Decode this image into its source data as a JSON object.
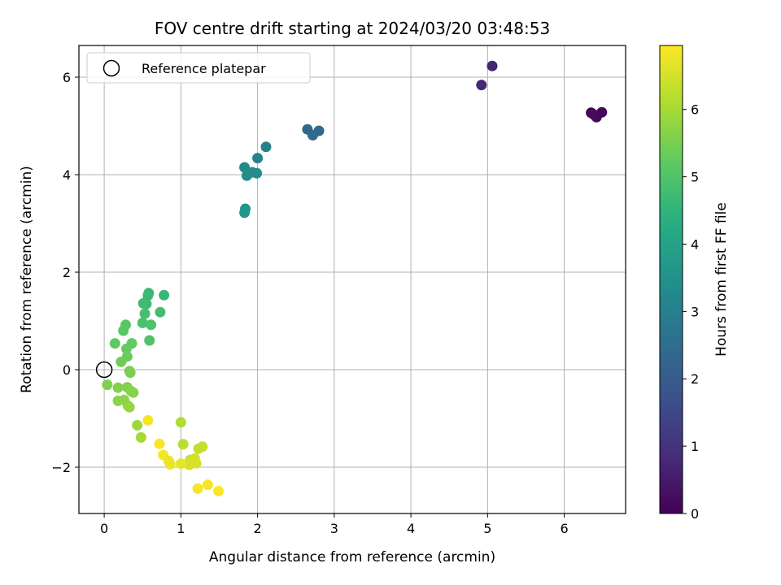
{
  "chart_data": {
    "type": "scatter",
    "title": "FOV centre drift starting at 2024/03/20 03:48:53",
    "xlabel": "Angular distance from reference (arcmin)",
    "ylabel": "Rotation from reference (arcmin)",
    "xlim": [
      -0.33,
      6.8
    ],
    "ylim": [
      -2.95,
      6.65
    ],
    "xticks": [
      0,
      1,
      2,
      3,
      4,
      5,
      6
    ],
    "yticks": [
      -2,
      0,
      2,
      4,
      6
    ],
    "xtick_labels": [
      "0",
      "1",
      "2",
      "3",
      "4",
      "5",
      "6"
    ],
    "ytick_labels": [
      "−2",
      "0",
      "2",
      "4",
      "6"
    ],
    "grid": true,
    "legend": {
      "label": "Reference platepar",
      "placement": "top-left",
      "marker": "open-circle"
    },
    "reference_point": {
      "x": 0,
      "y": 0
    },
    "colorbar": {
      "label": "Hours from first FF file",
      "range": [
        0,
        6.95
      ],
      "ticks": [
        0,
        1,
        2,
        3,
        4,
        5,
        6
      ],
      "tick_labels": [
        "0",
        "1",
        "2",
        "3",
        "4",
        "5",
        "6"
      ],
      "colormap": "viridis"
    },
    "points": [
      {
        "x": 6.35,
        "y": 5.27,
        "c": 0.05
      },
      {
        "x": 6.49,
        "y": 5.28,
        "c": 0.1
      },
      {
        "x": 6.42,
        "y": 5.18,
        "c": 0.15
      },
      {
        "x": 6.38,
        "y": 5.24,
        "c": 0.2
      },
      {
        "x": 5.06,
        "y": 6.23,
        "c": 0.7
      },
      {
        "x": 4.92,
        "y": 5.84,
        "c": 0.75
      },
      {
        "x": 2.65,
        "y": 4.93,
        "c": 2.3
      },
      {
        "x": 2.8,
        "y": 4.9,
        "c": 2.35
      },
      {
        "x": 2.72,
        "y": 4.81,
        "c": 2.4
      },
      {
        "x": 2.11,
        "y": 4.57,
        "c": 3.0
      },
      {
        "x": 2.0,
        "y": 4.34,
        "c": 3.05
      },
      {
        "x": 1.83,
        "y": 4.15,
        "c": 3.25
      },
      {
        "x": 1.93,
        "y": 4.05,
        "c": 3.3
      },
      {
        "x": 1.99,
        "y": 4.03,
        "c": 3.35
      },
      {
        "x": 1.86,
        "y": 3.98,
        "c": 3.4
      },
      {
        "x": 1.84,
        "y": 3.3,
        "c": 3.6
      },
      {
        "x": 1.83,
        "y": 3.22,
        "c": 3.65
      },
      {
        "x": 0.58,
        "y": 1.57,
        "c": 4.6
      },
      {
        "x": 0.57,
        "y": 1.52,
        "c": 4.65
      },
      {
        "x": 0.78,
        "y": 1.53,
        "c": 4.6
      },
      {
        "x": 0.55,
        "y": 1.35,
        "c": 4.7
      },
      {
        "x": 0.51,
        "y": 1.36,
        "c": 4.75
      },
      {
        "x": 0.73,
        "y": 1.18,
        "c": 4.8
      },
      {
        "x": 0.53,
        "y": 1.15,
        "c": 4.85
      },
      {
        "x": 0.5,
        "y": 0.96,
        "c": 4.9
      },
      {
        "x": 0.61,
        "y": 0.92,
        "c": 4.95
      },
      {
        "x": 0.59,
        "y": 0.6,
        "c": 5.0
      },
      {
        "x": 0.28,
        "y": 0.92,
        "c": 5.1
      },
      {
        "x": 0.25,
        "y": 0.8,
        "c": 5.15
      },
      {
        "x": 0.14,
        "y": 0.54,
        "c": 5.2
      },
      {
        "x": 0.36,
        "y": 0.54,
        "c": 5.25
      },
      {
        "x": 0.29,
        "y": 0.43,
        "c": 5.3
      },
      {
        "x": 0.3,
        "y": 0.27,
        "c": 5.35
      },
      {
        "x": 0.22,
        "y": 0.16,
        "c": 5.4
      },
      {
        "x": 0.33,
        "y": -0.03,
        "c": 5.45
      },
      {
        "x": 0.34,
        "y": -0.06,
        "c": 5.5
      },
      {
        "x": 0.04,
        "y": -0.31,
        "c": 5.55
      },
      {
        "x": 0.18,
        "y": -0.37,
        "c": 5.6
      },
      {
        "x": 0.3,
        "y": -0.36,
        "c": 5.6
      },
      {
        "x": 0.35,
        "y": -0.44,
        "c": 5.65
      },
      {
        "x": 0.38,
        "y": -0.47,
        "c": 5.65
      },
      {
        "x": 0.18,
        "y": -0.64,
        "c": 5.7
      },
      {
        "x": 0.26,
        "y": -0.62,
        "c": 5.7
      },
      {
        "x": 0.31,
        "y": -0.74,
        "c": 5.75
      },
      {
        "x": 0.33,
        "y": -0.77,
        "c": 5.8
      },
      {
        "x": 0.43,
        "y": -1.14,
        "c": 5.9
      },
      {
        "x": 0.48,
        "y": -1.39,
        "c": 6.0
      },
      {
        "x": 1.0,
        "y": -1.08,
        "c": 6.1
      },
      {
        "x": 1.03,
        "y": -1.53,
        "c": 6.2
      },
      {
        "x": 1.23,
        "y": -1.62,
        "c": 6.3
      },
      {
        "x": 1.28,
        "y": -1.58,
        "c": 6.35
      },
      {
        "x": 1.12,
        "y": -1.85,
        "c": 6.4
      },
      {
        "x": 1.18,
        "y": -1.82,
        "c": 6.45
      },
      {
        "x": 1.11,
        "y": -1.95,
        "c": 6.5
      },
      {
        "x": 1.2,
        "y": -1.92,
        "c": 6.55
      },
      {
        "x": 0.57,
        "y": -1.04,
        "c": 6.85
      },
      {
        "x": 0.72,
        "y": -1.52,
        "c": 6.9
      },
      {
        "x": 0.77,
        "y": -1.75,
        "c": 6.85
      },
      {
        "x": 0.84,
        "y": -1.87,
        "c": 6.8
      },
      {
        "x": 0.86,
        "y": -1.94,
        "c": 6.75
      },
      {
        "x": 1.0,
        "y": -1.93,
        "c": 6.7
      },
      {
        "x": 1.22,
        "y": -2.44,
        "c": 6.85
      },
      {
        "x": 1.35,
        "y": -2.36,
        "c": 6.9
      },
      {
        "x": 1.49,
        "y": -2.49,
        "c": 6.95
      }
    ]
  }
}
